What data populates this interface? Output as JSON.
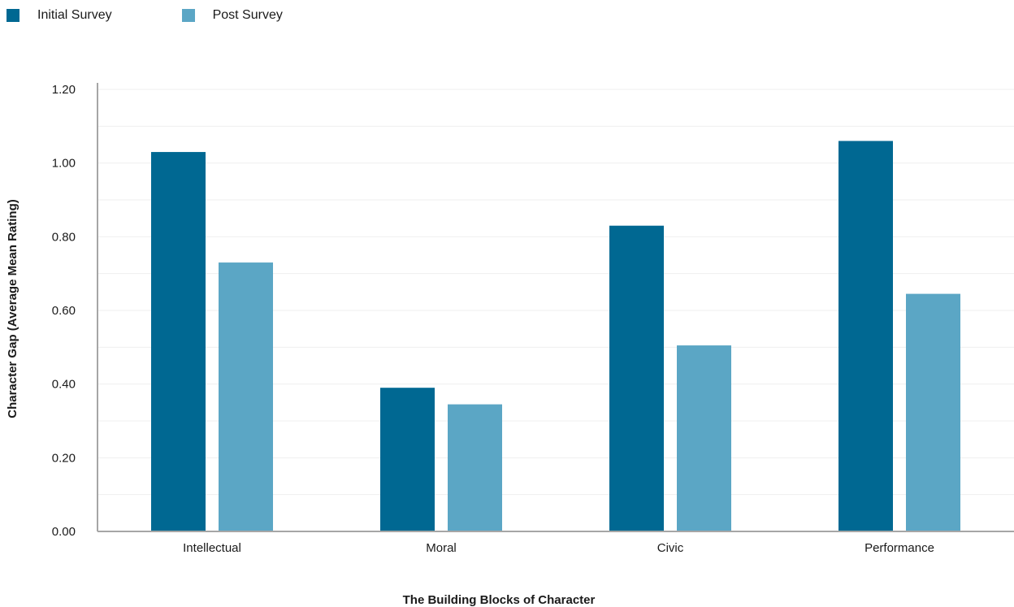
{
  "chart_data": {
    "type": "bar",
    "categories": [
      "Intellectual",
      "Moral",
      "Civic",
      "Performance"
    ],
    "series": [
      {
        "name": "Initial Survey",
        "values": [
          1.03,
          0.39,
          0.83,
          1.06
        ],
        "color": "#006892"
      },
      {
        "name": "Post Survey",
        "values": [
          0.73,
          0.345,
          0.505,
          0.645
        ],
        "color": "#5ba6c5"
      }
    ],
    "title": "",
    "xlabel": "The Building Blocks of Character",
    "ylabel": "Character Gap (Average Mean Rating)",
    "ylim": [
      0,
      1.2
    ],
    "yticks": [
      "0.00",
      "0.20",
      "0.40",
      "0.60",
      "0.80",
      "1.00",
      "1.20"
    ],
    "grid": true,
    "legend": "top-left"
  }
}
